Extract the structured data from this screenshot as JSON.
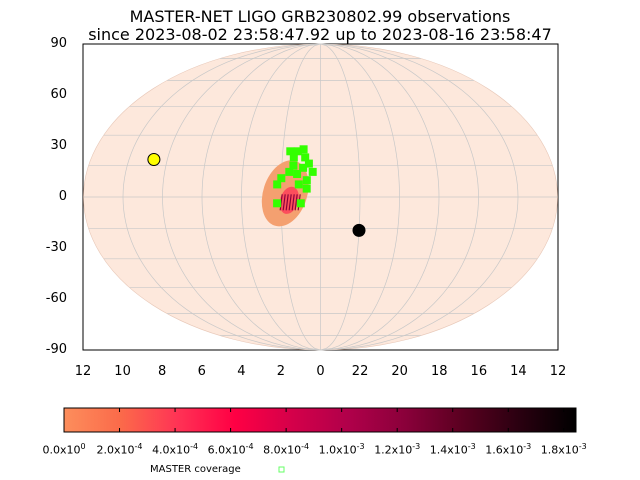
{
  "chart_data": {
    "type": "scatter",
    "title": "MASTER-NET LIGO GRB230802.99 observations",
    "subtitle": "since 2023-08-02 23:58:47.92 up to 2023-08-16 23:58:47",
    "projection": "aitoff/mollweide sky map",
    "y_ticks": [
      "90",
      "60",
      "30",
      "0",
      "-30",
      "-60",
      "-90"
    ],
    "x_ticks": [
      "12",
      "10",
      "8",
      "6",
      "4",
      "2",
      "0",
      "22",
      "20",
      "18",
      "16",
      "14",
      "12"
    ],
    "xlim_hours": [
      12,
      -12
    ],
    "ylim_deg": [
      -90,
      90
    ],
    "grid": true,
    "colorbar": {
      "ticks": [
        "0.0x10^0",
        "2.0x10^-4",
        "4.0x10^-4",
        "6.0x10^-4",
        "8.0x10^-4",
        "1.0x10^-3",
        "1.2x10^-3",
        "1.4x10^-3",
        "1.6x10^-3",
        "1.8x10^-3"
      ],
      "colors": [
        "#fc8e5c",
        "#fb6a4a",
        "#ff3355",
        "#ff0044",
        "#d5004a",
        "#b0004a",
        "#8a003a",
        "#5a0020",
        "#2a0010",
        "#000000"
      ]
    },
    "legend": [
      {
        "label": "MASTER coverage",
        "color": "#66ff66"
      }
    ],
    "sun": {
      "ra_hours": 8.7,
      "dec": 18
    },
    "moon": {
      "ra_hours": 22.0,
      "dec": -16
    },
    "localization_region": {
      "center_ra_hours": 2.0,
      "center_dec": 7,
      "color": "#f4a070"
    },
    "coverage_points": [
      {
        "ra": 1.6,
        "dec": 22
      },
      {
        "ra": 1.2,
        "dec": 22
      },
      {
        "ra": 0.9,
        "dec": 23
      },
      {
        "ra": 1.4,
        "dec": 19
      },
      {
        "ra": 0.8,
        "dec": 19
      },
      {
        "ra": 0.6,
        "dec": 16
      },
      {
        "ra": 0.9,
        "dec": 14
      },
      {
        "ra": 0.4,
        "dec": 12
      },
      {
        "ra": 1.2,
        "dec": 11
      },
      {
        "ra": 0.7,
        "dec": 8
      },
      {
        "ra": 1.6,
        "dec": 12
      },
      {
        "ra": 2.0,
        "dec": 9
      },
      {
        "ra": 1.1,
        "dec": 6
      },
      {
        "ra": 2.2,
        "dec": 6
      },
      {
        "ra": 2.2,
        "dec": -3
      },
      {
        "ra": 1.0,
        "dec": -3
      },
      {
        "ra": 0.7,
        "dec": 4
      },
      {
        "ra": 1.4,
        "dec": 15
      }
    ]
  }
}
